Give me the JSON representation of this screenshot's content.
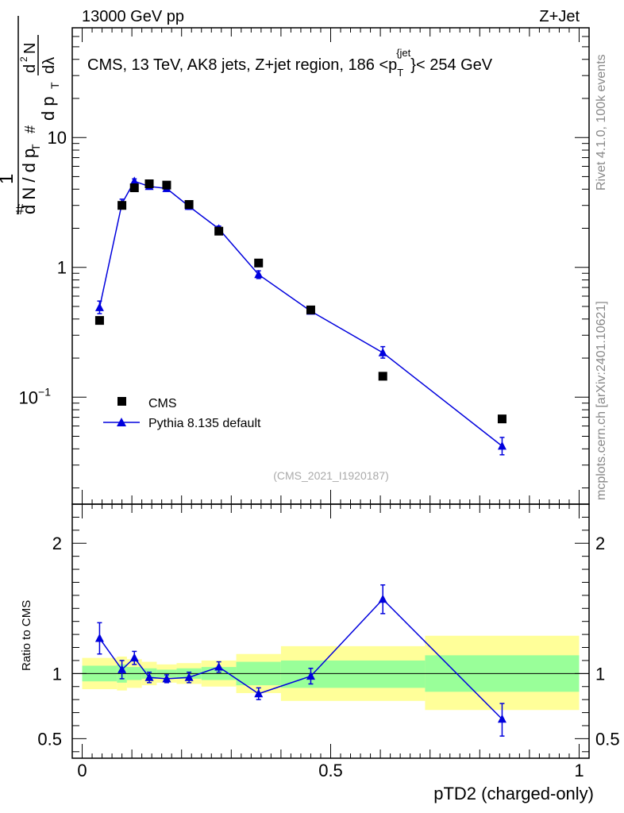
{
  "header": {
    "left": "13000 GeV pp",
    "right": "Z+Jet"
  },
  "side_text": {
    "top": "Rivet 4.1.0,  100k events",
    "bottom": "mcplots.cern.ch [arXiv:2401.10621]"
  },
  "watermark": "(CMS_2021_I1920187)",
  "colors": {
    "mc": "#0000dd",
    "data": "#000000",
    "band_inner": "#99ff99",
    "band_outer": "#ffff99"
  },
  "chart_data": [
    {
      "type": "scatter",
      "title": "CMS, 13 TeV, AK8 jets, Z+jet region, 186 <p_T^{jet}< 254 GeV",
      "title_parts": {
        "pre": "CMS, 13 TeV, AK8 jets, Z+jet region, 186 <p",
        "sub": "T",
        "sup": "{jet",
        "post": "}< 254 GeV"
      },
      "ylabel_parts": [
        "#",
        "1",
        "d N / d p",
        "T",
        "#",
        "d p",
        "T",
        "d",
        "2",
        "N",
        "dλ"
      ],
      "yscale": "log",
      "ylim": [
        0.015,
        70
      ],
      "xlim": [
        -0.02,
        1.02
      ],
      "y_ticks": [
        {
          "value": 10,
          "label": "10"
        },
        {
          "value": 1,
          "label": "1"
        },
        {
          "value": 0.1,
          "label": "10",
          "exp": "−1"
        }
      ],
      "legend": {
        "data": "CMS",
        "mc": "Pythia 8.135 default",
        "position": "bottom-left"
      },
      "series": [
        {
          "name": "CMS",
          "points": [
            {
              "x": 0.035,
              "y": 0.39
            },
            {
              "x": 0.08,
              "y": 3.0
            },
            {
              "x": 0.105,
              "y": 4.1
            },
            {
              "x": 0.135,
              "y": 4.4
            },
            {
              "x": 0.17,
              "y": 4.3
            },
            {
              "x": 0.215,
              "y": 3.05
            },
            {
              "x": 0.275,
              "y": 1.9
            },
            {
              "x": 0.355,
              "y": 1.08
            },
            {
              "x": 0.46,
              "y": 0.47
            },
            {
              "x": 0.605,
              "y": 0.145
            },
            {
              "x": 0.845,
              "y": 0.068
            }
          ]
        },
        {
          "name": "Pythia 8.135 default",
          "points": [
            {
              "x": 0.035,
              "y": 0.49,
              "lo": 0.44,
              "hi": 0.55
            },
            {
              "x": 0.08,
              "y": 3.1,
              "lo": 2.85,
              "hi": 3.35
            },
            {
              "x": 0.105,
              "y": 4.6,
              "lo": 4.4,
              "hi": 4.8
            },
            {
              "x": 0.135,
              "y": 4.2,
              "lo": 4.0,
              "hi": 4.4
            },
            {
              "x": 0.17,
              "y": 4.05,
              "lo": 3.85,
              "hi": 4.25
            },
            {
              "x": 0.215,
              "y": 2.95,
              "lo": 2.8,
              "hi": 3.1
            },
            {
              "x": 0.275,
              "y": 1.98,
              "lo": 1.88,
              "hi": 2.08
            },
            {
              "x": 0.355,
              "y": 0.88,
              "lo": 0.82,
              "hi": 0.94
            },
            {
              "x": 0.46,
              "y": 0.46,
              "lo": 0.44,
              "hi": 0.48
            },
            {
              "x": 0.605,
              "y": 0.22,
              "lo": 0.2,
              "hi": 0.245
            },
            {
              "x": 0.845,
              "y": 0.042,
              "lo": 0.036,
              "hi": 0.049
            }
          ]
        }
      ]
    },
    {
      "type": "line",
      "ylabel": "Ratio to CMS",
      "xlabel": "pTD2 (charged-only)",
      "xlim": [
        -0.02,
        1.02
      ],
      "ylim": [
        0.35,
        2.3
      ],
      "x_ticks": [
        {
          "value": 0,
          "label": "0"
        },
        {
          "value": 0.5,
          "label": "0.5"
        },
        {
          "value": 1,
          "label": "1"
        }
      ],
      "y_ticks": [
        {
          "value": 2,
          "label": "2"
        },
        {
          "value": 1,
          "label": "1"
        },
        {
          "value": 0.5,
          "label": "0.5"
        }
      ],
      "reference_line": 1,
      "bands": [
        {
          "x0": 0.0,
          "x1": 0.07,
          "in_lo": 0.94,
          "in_hi": 1.06,
          "out_lo": 0.88,
          "out_hi": 1.12
        },
        {
          "x0": 0.07,
          "x1": 0.09,
          "in_lo": 0.93,
          "in_hi": 1.07,
          "out_lo": 0.87,
          "out_hi": 1.13
        },
        {
          "x0": 0.09,
          "x1": 0.12,
          "in_lo": 0.95,
          "in_hi": 1.05,
          "out_lo": 0.89,
          "out_hi": 1.11
        },
        {
          "x0": 0.12,
          "x1": 0.15,
          "in_lo": 0.96,
          "in_hi": 1.04,
          "out_lo": 0.91,
          "out_hi": 1.09
        },
        {
          "x0": 0.15,
          "x1": 0.19,
          "in_lo": 0.97,
          "in_hi": 1.03,
          "out_lo": 0.93,
          "out_hi": 1.07
        },
        {
          "x0": 0.19,
          "x1": 0.24,
          "in_lo": 0.96,
          "in_hi": 1.04,
          "out_lo": 0.92,
          "out_hi": 1.08
        },
        {
          "x0": 0.24,
          "x1": 0.31,
          "in_lo": 0.95,
          "in_hi": 1.05,
          "out_lo": 0.9,
          "out_hi": 1.1
        },
        {
          "x0": 0.31,
          "x1": 0.4,
          "in_lo": 0.91,
          "in_hi": 1.09,
          "out_lo": 0.85,
          "out_hi": 1.15
        },
        {
          "x0": 0.4,
          "x1": 0.69,
          "in_lo": 0.89,
          "in_hi": 1.1,
          "out_lo": 0.79,
          "out_hi": 1.21
        },
        {
          "x0": 0.69,
          "x1": 1.0,
          "in_lo": 0.86,
          "in_hi": 1.14,
          "out_lo": 0.72,
          "out_hi": 1.29
        }
      ],
      "series": [
        {
          "name": "Pythia 8.135 default",
          "points": [
            {
              "x": 0.035,
              "y": 1.27,
              "lo": 1.15,
              "hi": 1.39
            },
            {
              "x": 0.08,
              "y": 1.03,
              "lo": 0.96,
              "hi": 1.1
            },
            {
              "x": 0.105,
              "y": 1.12,
              "lo": 1.07,
              "hi": 1.17
            },
            {
              "x": 0.135,
              "y": 0.97,
              "lo": 0.93,
              "hi": 1.01
            },
            {
              "x": 0.17,
              "y": 0.96,
              "lo": 0.93,
              "hi": 0.99
            },
            {
              "x": 0.215,
              "y": 0.97,
              "lo": 0.93,
              "hi": 1.01
            },
            {
              "x": 0.275,
              "y": 1.05,
              "lo": 1.01,
              "hi": 1.09
            },
            {
              "x": 0.355,
              "y": 0.845,
              "lo": 0.8,
              "hi": 0.89
            },
            {
              "x": 0.46,
              "y": 0.98,
              "lo": 0.92,
              "hi": 1.04
            },
            {
              "x": 0.605,
              "y": 1.57,
              "lo": 1.46,
              "hi": 1.68
            },
            {
              "x": 0.845,
              "y": 0.65,
              "lo": 0.52,
              "hi": 0.77
            }
          ]
        }
      ]
    }
  ]
}
